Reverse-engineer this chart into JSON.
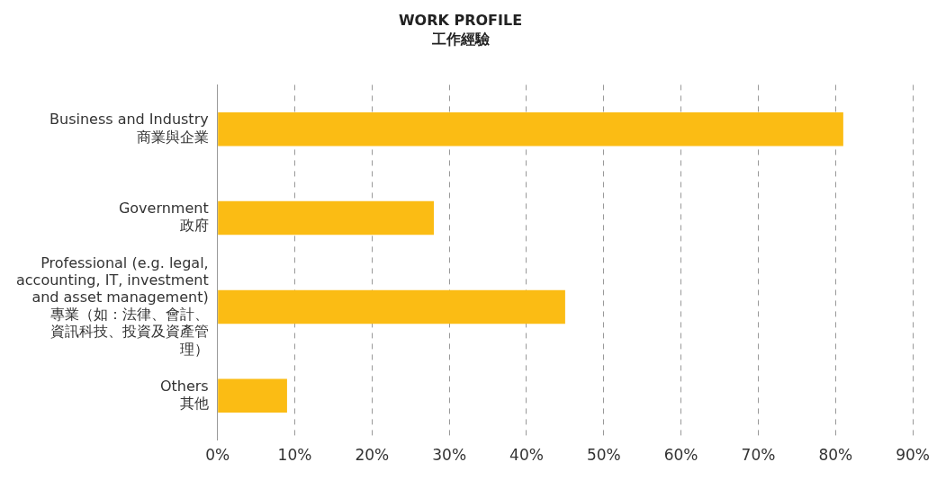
{
  "chart_data": {
    "type": "bar",
    "orientation": "horizontal",
    "title": "WORK PROFILE",
    "subtitle": "工作經驗",
    "categories": [
      "Business and Industry\n商業與企業",
      "Government\n政府",
      "Professional (e.g. legal,\naccounting, IT, investment\nand asset management)\n專業（如：法律、會計、資訊科技、投資及資產管理）",
      "Others\n其他"
    ],
    "values": [
      81,
      28,
      45,
      9
    ],
    "color": "#fbbc14",
    "xlim": [
      0,
      90
    ],
    "xticks": [
      {
        "value": 0,
        "label": "0%"
      },
      {
        "value": 10,
        "label": "10%"
      },
      {
        "value": 20,
        "label": "20%"
      },
      {
        "value": 30,
        "label": "30%"
      },
      {
        "value": 40,
        "label": "40%"
      },
      {
        "value": 50,
        "label": "50%"
      },
      {
        "value": 60,
        "label": "60%"
      },
      {
        "value": 70,
        "label": "70%"
      },
      {
        "value": 80,
        "label": "80%"
      },
      {
        "value": 90,
        "label": "90%"
      }
    ],
    "grid": "x",
    "legend": false
  }
}
